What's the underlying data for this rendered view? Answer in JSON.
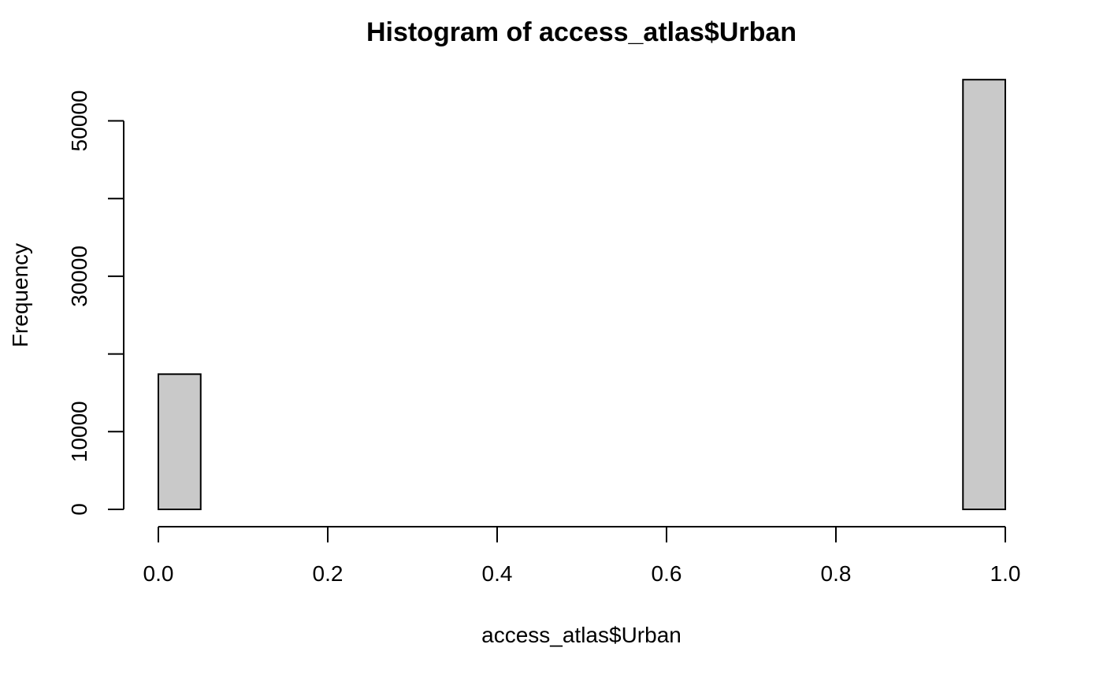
{
  "chart_data": {
    "type": "bar",
    "title": "Histogram of access_atlas$Urban",
    "xlabel": "access_atlas$Urban",
    "ylabel": "Frequency",
    "bins": [
      {
        "start": 0.0,
        "end": 0.05,
        "count": 17400
      },
      {
        "start": 0.05,
        "end": 0.1,
        "count": 0
      },
      {
        "start": 0.1,
        "end": 0.15,
        "count": 0
      },
      {
        "start": 0.15,
        "end": 0.2,
        "count": 0
      },
      {
        "start": 0.2,
        "end": 0.25,
        "count": 0
      },
      {
        "start": 0.25,
        "end": 0.3,
        "count": 0
      },
      {
        "start": 0.3,
        "end": 0.35,
        "count": 0
      },
      {
        "start": 0.35,
        "end": 0.4,
        "count": 0
      },
      {
        "start": 0.4,
        "end": 0.45,
        "count": 0
      },
      {
        "start": 0.45,
        "end": 0.5,
        "count": 0
      },
      {
        "start": 0.5,
        "end": 0.55,
        "count": 0
      },
      {
        "start": 0.55,
        "end": 0.6,
        "count": 0
      },
      {
        "start": 0.6,
        "end": 0.65,
        "count": 0
      },
      {
        "start": 0.65,
        "end": 0.7,
        "count": 0
      },
      {
        "start": 0.7,
        "end": 0.75,
        "count": 0
      },
      {
        "start": 0.75,
        "end": 0.8,
        "count": 0
      },
      {
        "start": 0.8,
        "end": 0.85,
        "count": 0
      },
      {
        "start": 0.85,
        "end": 0.9,
        "count": 0
      },
      {
        "start": 0.9,
        "end": 0.95,
        "count": 0
      },
      {
        "start": 0.95,
        "end": 1.0,
        "count": 55300
      }
    ],
    "xlim": [
      0,
      1
    ],
    "ylim": [
      0,
      55300
    ],
    "x_ticks": [
      {
        "value": 0.0,
        "label": "0.0"
      },
      {
        "value": 0.2,
        "label": "0.2"
      },
      {
        "value": 0.4,
        "label": "0.4"
      },
      {
        "value": 0.6,
        "label": "0.6"
      },
      {
        "value": 0.8,
        "label": "0.8"
      },
      {
        "value": 1.0,
        "label": "1.0"
      }
    ],
    "y_ticks": [
      {
        "value": 0,
        "label": "0"
      },
      {
        "value": 10000,
        "label": "10000"
      },
      {
        "value": 20000,
        "label": ""
      },
      {
        "value": 30000,
        "label": "30000"
      },
      {
        "value": 40000,
        "label": ""
      },
      {
        "value": 50000,
        "label": "50000"
      }
    ],
    "bar_fill": "#c9c9c9",
    "bar_stroke": "#000000",
    "grid": false,
    "legend": "none"
  }
}
